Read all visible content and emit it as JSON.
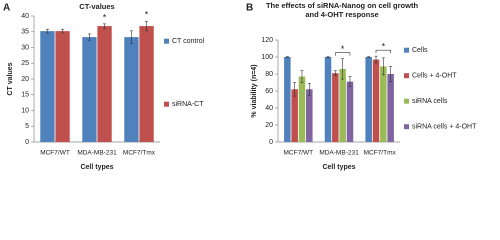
{
  "chart_data": [
    {
      "type": "bar",
      "panel_label": "A",
      "title": "CT-values",
      "y_label": "CT values",
      "x_label": "Cell types",
      "categories": [
        "MCF7/WT",
        "MDA-MB-231",
        "MCF7/Tmx"
      ],
      "series": [
        {
          "name": "CT control",
          "color": "#4f81bd",
          "values": [
            35.2,
            33.3,
            33.3
          ],
          "errors": [
            0.6,
            1.0,
            2.0
          ]
        },
        {
          "name": "siRNA-CT",
          "color": "#c0504d",
          "values": [
            35.2,
            36.8,
            36.8
          ],
          "errors": [
            0.6,
            0.7,
            1.5
          ]
        }
      ],
      "ylim": [
        0,
        40
      ],
      "yticks": [
        0,
        5,
        10,
        15,
        20,
        25,
        30,
        35,
        40
      ],
      "legend": "right",
      "annotations": [
        "*",
        "*"
      ]
    },
    {
      "type": "bar",
      "panel_label": "B",
      "title": "The effects of siRNA-Nanog on cell growth and 4-OHT response",
      "y_label": "% viability (n=4)",
      "x_label": "Cell types",
      "categories": [
        "MCF7/WT",
        "MDA-MB-231",
        "MCF7/Tmx"
      ],
      "series": [
        {
          "name": "Cells",
          "color": "#4f81bd",
          "values": [
            100,
            100,
            100
          ],
          "errors": [
            0.5,
            0.5,
            0.5
          ]
        },
        {
          "name": "Cells + 4-OHT",
          "color": "#c0504d",
          "values": [
            62,
            81,
            97
          ],
          "errors": [
            8,
            3,
            4
          ]
        },
        {
          "name": "siRNA cells",
          "color": "#9bbb59",
          "values": [
            77,
            86,
            89
          ],
          "errors": [
            7,
            12,
            10
          ]
        },
        {
          "name": "siRNA cells + 4-OHT",
          "color": "#8064a2",
          "values": [
            62,
            71,
            80
          ],
          "errors": [
            7,
            6,
            9
          ]
        }
      ],
      "ylim": [
        0,
        120
      ],
      "yticks": [
        0,
        20,
        40,
        60,
        80,
        100,
        120
      ],
      "legend": "right",
      "annotations": [
        "*",
        "*"
      ]
    }
  ]
}
